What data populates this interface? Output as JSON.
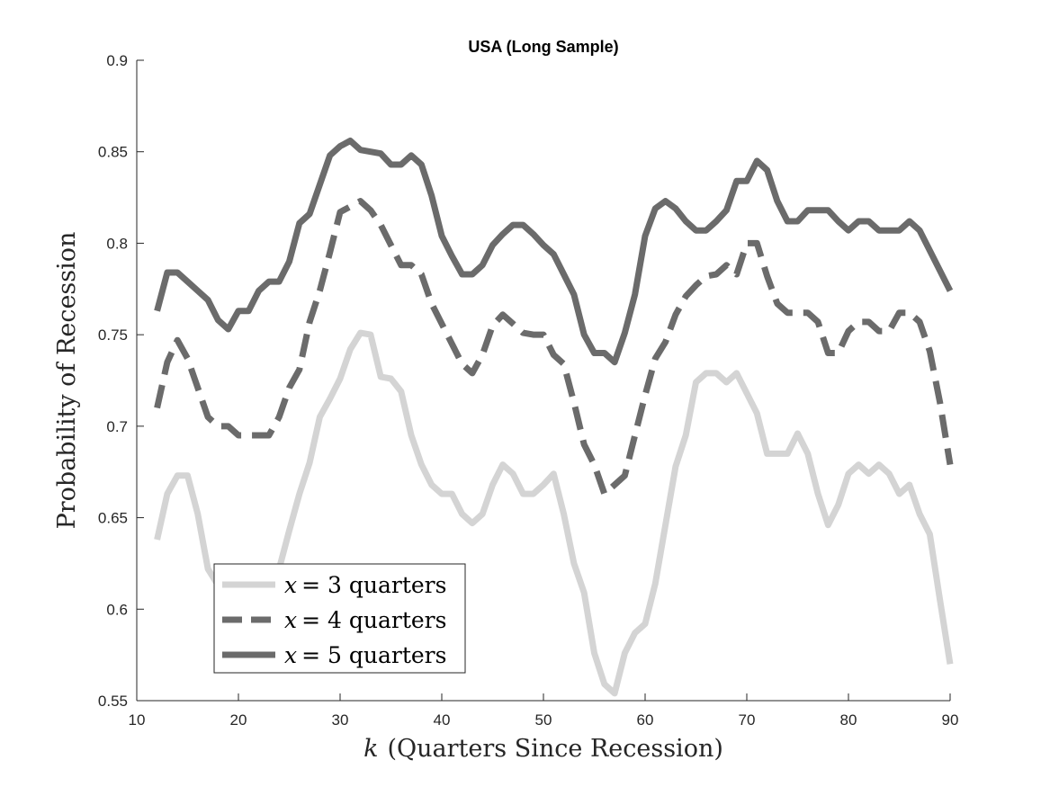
{
  "chart_data": {
    "type": "line",
    "title": "USA (Long Sample)",
    "xlabel_var": "k",
    "xlabel_text": "(Quarters Since Recession)",
    "ylabel": "Probability of Recession",
    "xlim": [
      10,
      90
    ],
    "ylim": [
      0.55,
      0.9
    ],
    "xticks": [
      10,
      20,
      30,
      40,
      50,
      60,
      70,
      80,
      90
    ],
    "xtick_labels": [
      "10",
      "20",
      "30",
      "40",
      "50",
      "60",
      "70",
      "80",
      "90"
    ],
    "yticks": [
      0.55,
      0.6,
      0.65,
      0.7,
      0.75,
      0.8,
      0.85,
      0.9
    ],
    "ytick_labels": [
      "0.55",
      "0.6",
      "0.65",
      "0.7",
      "0.75",
      "0.8",
      "0.85",
      "0.9"
    ],
    "grid": false,
    "legend_position": "bottom-left",
    "x": [
      12,
      13,
      14,
      15,
      16,
      17,
      18,
      19,
      20,
      21,
      22,
      23,
      24,
      25,
      26,
      27,
      28,
      29,
      30,
      31,
      32,
      33,
      34,
      35,
      36,
      37,
      38,
      39,
      40,
      41,
      42,
      43,
      44,
      45,
      46,
      47,
      48,
      49,
      50,
      51,
      52,
      53,
      54,
      55,
      56,
      57,
      58,
      59,
      60,
      61,
      62,
      63,
      64,
      65,
      66,
      67,
      68,
      69,
      70,
      71,
      72,
      73,
      74,
      75,
      76,
      77,
      78,
      79,
      80,
      81,
      82,
      83,
      84,
      85,
      86,
      87,
      88,
      89,
      90
    ],
    "series": [
      {
        "var": "x",
        "label_text": "= 3 quarters",
        "color": "#d4d4d4",
        "dash": "solid",
        "values": [
          0.638,
          0.663,
          0.673,
          0.673,
          0.652,
          0.622,
          0.613,
          0.598,
          0.583,
          0.578,
          0.585,
          0.598,
          0.622,
          0.643,
          0.663,
          0.68,
          0.705,
          0.715,
          0.726,
          0.742,
          0.751,
          0.75,
          0.727,
          0.726,
          0.719,
          0.695,
          0.679,
          0.668,
          0.663,
          0.663,
          0.652,
          0.647,
          0.652,
          0.668,
          0.679,
          0.674,
          0.663,
          0.663,
          0.668,
          0.674,
          0.652,
          0.625,
          0.609,
          0.576,
          0.559,
          0.554,
          0.576,
          0.587,
          0.592,
          0.614,
          0.646,
          0.678,
          0.695,
          0.724,
          0.729,
          0.729,
          0.724,
          0.729,
          0.718,
          0.707,
          0.685,
          0.685,
          0.685,
          0.696,
          0.685,
          0.663,
          0.646,
          0.657,
          0.674,
          0.679,
          0.674,
          0.679,
          0.674,
          0.663,
          0.668,
          0.652,
          0.641,
          0.605,
          0.57
        ]
      },
      {
        "var": "x",
        "label_text": "= 4 quarters",
        "color": "#6b6b6b",
        "dash": "dashed",
        "values": [
          0.71,
          0.735,
          0.747,
          0.737,
          0.721,
          0.705,
          0.7,
          0.7,
          0.695,
          0.695,
          0.695,
          0.695,
          0.705,
          0.721,
          0.731,
          0.757,
          0.774,
          0.795,
          0.817,
          0.82,
          0.823,
          0.818,
          0.81,
          0.799,
          0.788,
          0.788,
          0.783,
          0.767,
          0.756,
          0.745,
          0.734,
          0.729,
          0.739,
          0.755,
          0.761,
          0.756,
          0.751,
          0.75,
          0.75,
          0.739,
          0.734,
          0.713,
          0.69,
          0.679,
          0.663,
          0.668,
          0.673,
          0.695,
          0.717,
          0.737,
          0.746,
          0.761,
          0.771,
          0.777,
          0.782,
          0.783,
          0.788,
          0.783,
          0.8,
          0.8,
          0.782,
          0.767,
          0.762,
          0.762,
          0.762,
          0.757,
          0.74,
          0.74,
          0.752,
          0.757,
          0.757,
          0.752,
          0.752,
          0.762,
          0.762,
          0.757,
          0.741,
          0.713,
          0.679
        ]
      },
      {
        "var": "x",
        "label_text": "= 5 quarters",
        "color": "#6b6b6b",
        "dash": "solid",
        "values": [
          0.763,
          0.784,
          0.784,
          0.779,
          0.774,
          0.769,
          0.758,
          0.753,
          0.763,
          0.763,
          0.774,
          0.779,
          0.779,
          0.79,
          0.811,
          0.816,
          0.832,
          0.848,
          0.853,
          0.856,
          0.851,
          0.85,
          0.849,
          0.843,
          0.843,
          0.848,
          0.843,
          0.826,
          0.804,
          0.793,
          0.783,
          0.783,
          0.788,
          0.799,
          0.805,
          0.81,
          0.81,
          0.805,
          0.799,
          0.794,
          0.783,
          0.772,
          0.75,
          0.74,
          0.74,
          0.735,
          0.751,
          0.772,
          0.804,
          0.819,
          0.823,
          0.819,
          0.812,
          0.807,
          0.807,
          0.812,
          0.818,
          0.834,
          0.834,
          0.845,
          0.84,
          0.823,
          0.812,
          0.812,
          0.818,
          0.818,
          0.818,
          0.812,
          0.807,
          0.812,
          0.812,
          0.807,
          0.807,
          0.807,
          0.812,
          0.807,
          0.796,
          0.785,
          0.774
        ]
      }
    ]
  }
}
